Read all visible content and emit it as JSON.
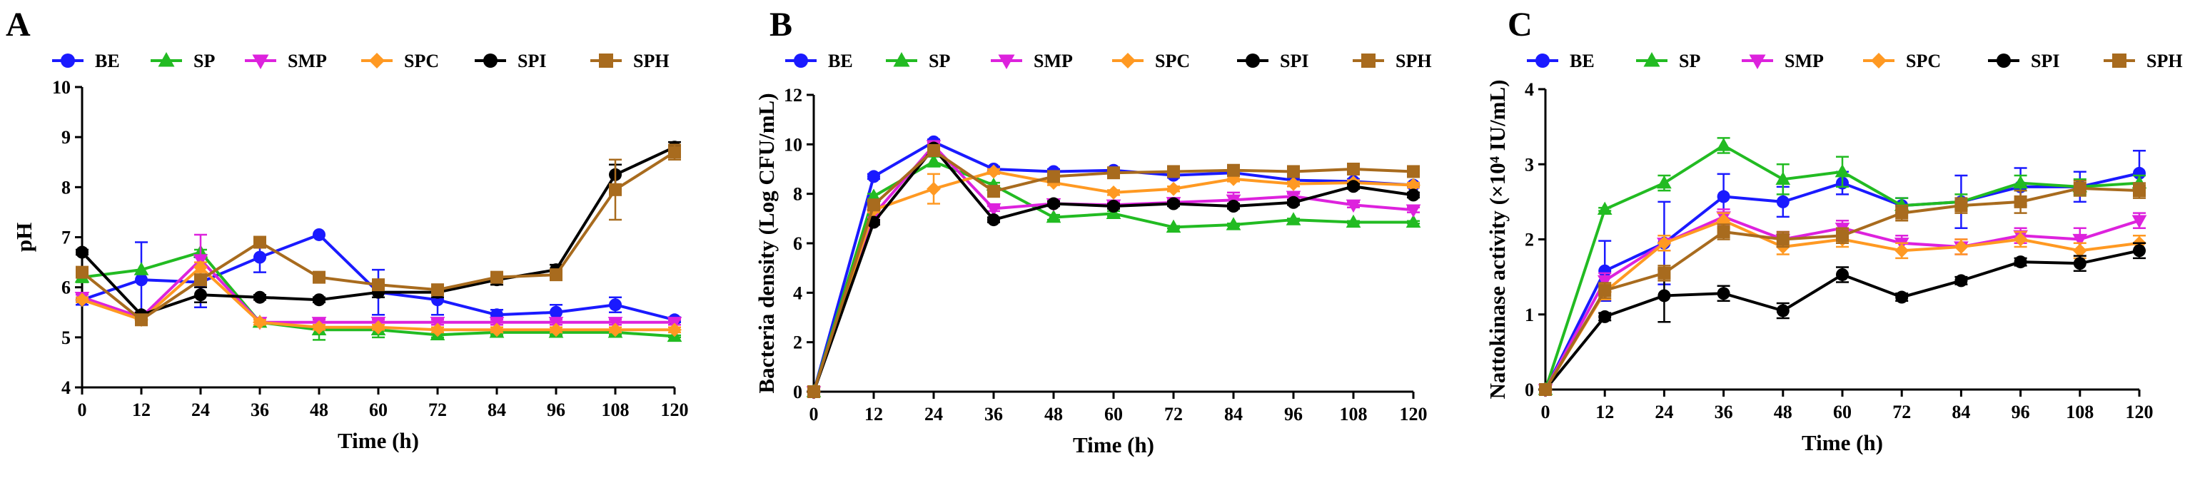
{
  "chart_data": [
    {
      "panel_label": "A",
      "type": "line",
      "xlabel": "Time (h)",
      "ylabel": "pH",
      "x": [
        0,
        12,
        24,
        36,
        48,
        60,
        72,
        84,
        96,
        108,
        120
      ],
      "xticks": [
        "0",
        "12",
        "24",
        "36",
        "48",
        "60",
        "72",
        "84",
        "96",
        "108",
        "120"
      ],
      "ylim": [
        4,
        10
      ],
      "yticks": [
        "4",
        "5",
        "6",
        "7",
        "8",
        "9",
        "10"
      ],
      "legend": "top",
      "grid": false,
      "series": [
        {
          "name": "BE",
          "color": "#1a1aff",
          "marker": "circle",
          "values": [
            5.75,
            6.15,
            6.1,
            6.6,
            7.05,
            5.9,
            5.75,
            5.45,
            5.5,
            5.65,
            5.35
          ],
          "errors": [
            0.1,
            0.75,
            0.5,
            0.3,
            0,
            0.45,
            0.3,
            0.1,
            0.15,
            0.15,
            0.05
          ]
        },
        {
          "name": "SP",
          "color": "#22bb22",
          "marker": "triangle-up",
          "values": [
            6.2,
            6.35,
            6.7,
            5.3,
            5.15,
            5.15,
            5.05,
            5.1,
            5.1,
            5.1,
            5.02
          ],
          "errors": [
            0.1,
            0,
            0.05,
            0.05,
            0.2,
            0.15,
            0.05,
            0.05,
            0.05,
            0.05,
            0.02
          ]
        },
        {
          "name": "SMP",
          "color": "#dd22dd",
          "marker": "triangle-down",
          "values": [
            5.8,
            5.4,
            6.55,
            5.3,
            5.3,
            5.3,
            5.3,
            5.3,
            5.3,
            5.3,
            5.3
          ],
          "errors": [
            0.05,
            0.1,
            0.5,
            0.05,
            0.05,
            0.05,
            0.05,
            0.05,
            0.05,
            0.05,
            0.05
          ]
        },
        {
          "name": "SPC",
          "color": "#ff9922",
          "marker": "diamond",
          "values": [
            5.75,
            5.35,
            6.4,
            5.3,
            5.2,
            5.2,
            5.15,
            5.15,
            5.15,
            5.15,
            5.15
          ],
          "errors": [
            0.05,
            0.1,
            0.1,
            0.05,
            0.05,
            0.05,
            0.05,
            0.05,
            0.05,
            0.05,
            0.05
          ]
        },
        {
          "name": "SPI",
          "color": "#000000",
          "marker": "circle",
          "values": [
            6.7,
            5.45,
            5.85,
            5.8,
            5.75,
            5.9,
            5.9,
            6.15,
            6.35,
            8.25,
            8.8
          ],
          "errors": [
            0.05,
            0.05,
            0.15,
            0.05,
            0.05,
            0.1,
            0.1,
            0.1,
            0.1,
            0.2,
            0.1
          ]
        },
        {
          "name": "SPH",
          "color": "#a86b1e",
          "marker": "square",
          "values": [
            6.3,
            5.35,
            6.15,
            6.9,
            6.2,
            6.05,
            5.95,
            6.2,
            6.25,
            7.95,
            8.7
          ],
          "errors": [
            0.05,
            0.1,
            0.1,
            0.1,
            0.05,
            0.1,
            0.1,
            0.05,
            0.1,
            0.6,
            0.15
          ]
        }
      ]
    },
    {
      "panel_label": "B",
      "type": "line",
      "xlabel": "Time (h)",
      "ylabel": "Bacteria density (Log CFU/mL)",
      "x": [
        0,
        12,
        24,
        36,
        48,
        60,
        72,
        84,
        96,
        108,
        120
      ],
      "xticks": [
        "0",
        "12",
        "24",
        "36",
        "48",
        "60",
        "72",
        "84",
        "96",
        "108",
        "120"
      ],
      "ylim": [
        0,
        12
      ],
      "yticks": [
        "0",
        "2",
        "4",
        "6",
        "8",
        "10",
        "12"
      ],
      "legend": "top",
      "grid": false,
      "series": [
        {
          "name": "BE",
          "color": "#1a1aff",
          "marker": "circle",
          "values": [
            0,
            8.7,
            10.1,
            9.0,
            8.9,
            8.95,
            8.75,
            8.85,
            8.55,
            8.5,
            8.35
          ],
          "errors": [
            0,
            0.1,
            0.1,
            0.1,
            0.1,
            0.1,
            0.1,
            0.1,
            0.1,
            0.1,
            0.1
          ]
        },
        {
          "name": "SP",
          "color": "#22bb22",
          "marker": "triangle-up",
          "values": [
            0,
            7.9,
            9.3,
            8.35,
            7.05,
            7.2,
            6.65,
            6.75,
            6.95,
            6.85,
            6.85
          ],
          "errors": [
            0,
            0.1,
            0.2,
            0.1,
            0.1,
            0.1,
            0.05,
            0.05,
            0.05,
            0.05,
            0.05
          ]
        },
        {
          "name": "SMP",
          "color": "#dd22dd",
          "marker": "triangle-down",
          "values": [
            0,
            7.15,
            9.95,
            7.4,
            7.6,
            7.55,
            7.65,
            7.75,
            7.9,
            7.55,
            7.35
          ],
          "errors": [
            0,
            0.1,
            0.1,
            0.1,
            0.1,
            0.1,
            0.1,
            0.3,
            0.1,
            0.1,
            0.1
          ]
        },
        {
          "name": "SPC",
          "color": "#ff9922",
          "marker": "diamond",
          "values": [
            0,
            7.35,
            8.2,
            8.9,
            8.45,
            8.05,
            8.2,
            8.6,
            8.4,
            8.45,
            8.35
          ],
          "errors": [
            0,
            0.1,
            0.6,
            0.1,
            0.1,
            0.1,
            0.1,
            0.1,
            0.1,
            0.1,
            0.1
          ]
        },
        {
          "name": "SPI",
          "color": "#000000",
          "marker": "circle",
          "values": [
            0,
            6.85,
            9.85,
            6.95,
            7.6,
            7.5,
            7.6,
            7.5,
            7.65,
            8.3,
            7.95
          ],
          "errors": [
            0,
            0.1,
            0.1,
            0.1,
            0.1,
            0.1,
            0.1,
            0.1,
            0.1,
            0.1,
            0.1
          ]
        },
        {
          "name": "SPH",
          "color": "#a86b1e",
          "marker": "square",
          "values": [
            0,
            7.55,
            9.75,
            8.1,
            8.7,
            8.85,
            8.9,
            8.95,
            8.9,
            9.0,
            8.9
          ],
          "errors": [
            0,
            0.1,
            0.1,
            0.1,
            0.1,
            0.1,
            0.1,
            0.1,
            0.1,
            0.1,
            0.1
          ]
        }
      ]
    },
    {
      "panel_label": "C",
      "type": "line",
      "xlabel": "Time (h)",
      "ylabel": "Nattokinase activity (×10⁴ IU/mL)",
      "x": [
        0,
        12,
        24,
        36,
        48,
        60,
        72,
        84,
        96,
        108,
        120
      ],
      "xticks": [
        "0",
        "12",
        "24",
        "36",
        "48",
        "60",
        "72",
        "84",
        "96",
        "108",
        "120"
      ],
      "ylim": [
        0,
        4
      ],
      "yticks": [
        "0",
        "1",
        "2",
        "3",
        "4"
      ],
      "legend": "top",
      "grid": false,
      "series": [
        {
          "name": "BE",
          "color": "#1a1aff",
          "marker": "circle",
          "values": [
            0,
            1.58,
            1.95,
            2.57,
            2.5,
            2.75,
            2.45,
            2.5,
            2.7,
            2.7,
            2.88
          ],
          "errors": [
            0,
            0.4,
            0.55,
            0.3,
            0.2,
            0.15,
            0.1,
            0.35,
            0.25,
            0.2,
            0.3
          ]
        },
        {
          "name": "SP",
          "color": "#22bb22",
          "marker": "triangle-up",
          "values": [
            0,
            2.4,
            2.75,
            3.25,
            2.8,
            2.9,
            2.45,
            2.5,
            2.75,
            2.7,
            2.75
          ],
          "errors": [
            0,
            0.02,
            0.1,
            0.1,
            0.2,
            0.2,
            0.1,
            0.1,
            0.1,
            0.1,
            0.1
          ]
        },
        {
          "name": "SMP",
          "color": "#dd22dd",
          "marker": "triangle-down",
          "values": [
            0,
            1.45,
            1.95,
            2.3,
            2.0,
            2.15,
            1.95,
            1.9,
            2.05,
            2.0,
            2.25
          ],
          "errors": [
            0,
            0.1,
            0.1,
            0.1,
            0.1,
            0.1,
            0.1,
            0.1,
            0.1,
            0.15,
            0.1
          ]
        },
        {
          "name": "SPC",
          "color": "#ff9922",
          "marker": "diamond",
          "values": [
            0,
            1.3,
            1.95,
            2.25,
            1.9,
            2.0,
            1.85,
            1.9,
            2.0,
            1.85,
            1.95
          ],
          "errors": [
            0,
            0.1,
            0.1,
            0.1,
            0.1,
            0.1,
            0.1,
            0.1,
            0.1,
            0.1,
            0.1
          ]
        },
        {
          "name": "SPI",
          "color": "#000000",
          "marker": "circle",
          "values": [
            0,
            0.97,
            1.25,
            1.28,
            1.05,
            1.53,
            1.23,
            1.45,
            1.7,
            1.68,
            1.85
          ],
          "errors": [
            0,
            0.05,
            0.35,
            0.1,
            0.1,
            0.1,
            0.05,
            0.05,
            0.05,
            0.1,
            0.1
          ]
        },
        {
          "name": "SPH",
          "color": "#a86b1e",
          "marker": "square",
          "values": [
            0,
            1.32,
            1.55,
            2.1,
            2.0,
            2.05,
            2.35,
            2.45,
            2.5,
            2.68,
            2.65
          ],
          "errors": [
            0,
            0.1,
            0.1,
            0.1,
            0.1,
            0.1,
            0.1,
            0.1,
            0.15,
            0.1,
            0.1
          ]
        }
      ]
    }
  ]
}
